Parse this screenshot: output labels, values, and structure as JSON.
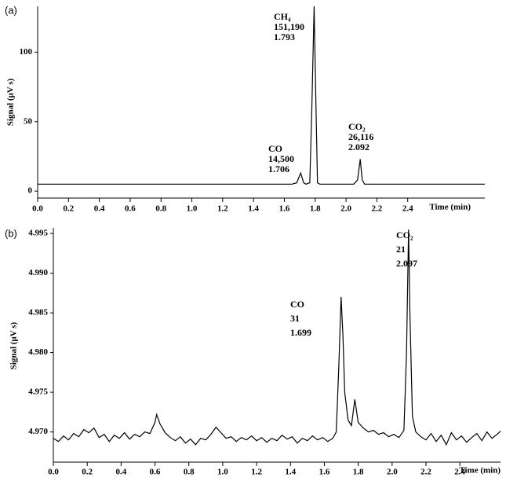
{
  "chart_data": [
    {
      "type": "line",
      "label": "(a)",
      "xlabel": "Time (min)",
      "ylabel": "Signal (μV s)",
      "xlim": [
        0,
        2.9
      ],
      "ylim": [
        -5,
        133
      ],
      "xticks": [
        {
          "value": 0,
          "label": "0.0"
        },
        {
          "value": 0.2,
          "label": "0.2"
        },
        {
          "value": 0.4,
          "label": "0.4"
        },
        {
          "value": 0.6,
          "label": "0.6"
        },
        {
          "value": 0.8,
          "label": "0.8"
        },
        {
          "value": 1,
          "label": "1.0"
        },
        {
          "value": 1.2,
          "label": "1.2"
        },
        {
          "value": 1.4,
          "label": "1.4"
        },
        {
          "value": 1.6,
          "label": "1.6"
        },
        {
          "value": 1.8,
          "label": "1.8"
        },
        {
          "value": 2,
          "label": "2.0"
        },
        {
          "value": 2.2,
          "label": "2.2"
        },
        {
          "value": 2.4,
          "label": "2.4"
        }
      ],
      "yticks": [
        0,
        50,
        100
      ],
      "color": "#000000",
      "x": [
        0,
        1.65,
        1.68,
        1.706,
        1.725,
        1.74,
        1.765,
        1.778,
        1.793,
        1.805,
        1.815,
        1.83,
        2.05,
        2.075,
        2.092,
        2.105,
        2.12,
        2.9
      ],
      "values": [
        5,
        5,
        6,
        13,
        6,
        5,
        6,
        60,
        133,
        60,
        6,
        5,
        5,
        8,
        23,
        8,
        5,
        5
      ],
      "annotations": [
        [
          "CO",
          "14,500",
          "1.706"
        ],
        [
          "CH₄",
          "151,190",
          "1.793"
        ],
        [
          "CO₂",
          "26,116",
          "2.092"
        ]
      ]
    },
    {
      "type": "line",
      "label": "(b)",
      "xlabel": "Time (min)",
      "ylabel": "Signal (μV s)",
      "xlim": [
        0,
        2.64
      ],
      "ylim": [
        4.9662,
        4.9957
      ],
      "xticks": [
        {
          "value": 0,
          "label": "0.0"
        },
        {
          "value": 0.2,
          "label": "0.2"
        },
        {
          "value": 0.4,
          "label": "0.4"
        },
        {
          "value": 0.6,
          "label": "0.6"
        },
        {
          "value": 0.8,
          "label": "0.8"
        },
        {
          "value": 1,
          "label": "1.0"
        },
        {
          "value": 1.2,
          "label": "1.2"
        },
        {
          "value": 1.4,
          "label": "1.4"
        },
        {
          "value": 1.6,
          "label": "1.6"
        },
        {
          "value": 1.8,
          "label": "1.8"
        },
        {
          "value": 2,
          "label": "2.0"
        },
        {
          "value": 2.2,
          "label": "2.2"
        },
        {
          "value": 2.4,
          "label": "2.4"
        }
      ],
      "yticks": [
        {
          "value": 4.97,
          "label": "4.970"
        },
        4.975,
        {
          "value": 4.98,
          "label": "4.980"
        },
        4.985,
        {
          "value": 4.99,
          "label": "4.990"
        },
        4.995
      ],
      "color": "#000000",
      "x": [
        0,
        0.03,
        0.06,
        0.09,
        0.12,
        0.15,
        0.18,
        0.21,
        0.24,
        0.27,
        0.3,
        0.33,
        0.36,
        0.39,
        0.42,
        0.45,
        0.48,
        0.51,
        0.54,
        0.57,
        0.6,
        0.61,
        0.63,
        0.66,
        0.69,
        0.72,
        0.75,
        0.78,
        0.81,
        0.84,
        0.87,
        0.9,
        0.93,
        0.96,
        0.99,
        1.02,
        1.05,
        1.08,
        1.11,
        1.14,
        1.17,
        1.2,
        1.23,
        1.26,
        1.29,
        1.32,
        1.35,
        1.38,
        1.41,
        1.44,
        1.47,
        1.5,
        1.53,
        1.56,
        1.59,
        1.62,
        1.65,
        1.67,
        1.685,
        1.699,
        1.71,
        1.72,
        1.74,
        1.76,
        1.78,
        1.8,
        1.83,
        1.86,
        1.89,
        1.92,
        1.95,
        1.98,
        2.01,
        2.04,
        2.07,
        2.085,
        2.097,
        2.105,
        2.12,
        2.14,
        2.17,
        2.2,
        2.23,
        2.26,
        2.29,
        2.32,
        2.35,
        2.38,
        2.41,
        2.44,
        2.47,
        2.5,
        2.53,
        2.56,
        2.59,
        2.62,
        2.64
      ],
      "values": [
        4.9692,
        4.9688,
        4.9695,
        4.969,
        4.9698,
        4.9694,
        4.9703,
        4.9699,
        4.9705,
        4.9693,
        4.9697,
        4.9688,
        4.9696,
        4.9692,
        4.9699,
        4.9691,
        4.9697,
        4.9694,
        4.97,
        4.9698,
        4.9712,
        4.9722,
        4.971,
        4.9699,
        4.9693,
        4.9689,
        4.9694,
        4.9686,
        4.9691,
        4.9684,
        4.9692,
        4.969,
        4.9697,
        4.9706,
        4.9699,
        4.9692,
        4.9694,
        4.9688,
        4.9693,
        4.969,
        4.9695,
        4.9689,
        4.9693,
        4.9687,
        4.9692,
        4.9689,
        4.9696,
        4.9691,
        4.9694,
        4.9686,
        4.9692,
        4.9689,
        4.9695,
        4.969,
        4.9693,
        4.9688,
        4.9692,
        4.97,
        4.978,
        4.987,
        4.982,
        4.975,
        4.9715,
        4.9708,
        4.9741,
        4.9712,
        4.9705,
        4.97,
        4.9702,
        4.9697,
        4.9699,
        4.9694,
        4.9697,
        4.9693,
        4.9702,
        4.98,
        4.9955,
        4.985,
        4.972,
        4.97,
        4.9694,
        4.969,
        4.9698,
        4.9688,
        4.9696,
        4.9684,
        4.9699,
        4.969,
        4.9695,
        4.9687,
        4.9693,
        4.9698,
        4.9689,
        4.97,
        4.9692,
        4.9697,
        4.9701
      ],
      "annotations": [
        [
          "CO",
          "31",
          "1.699"
        ],
        [
          "CO₂",
          "21",
          "2.097"
        ]
      ]
    }
  ]
}
